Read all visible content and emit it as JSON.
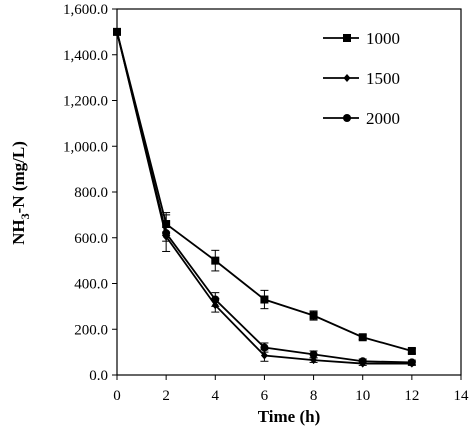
{
  "chart_data": {
    "type": "line",
    "xlabel": "Time (h)",
    "ylabel": {
      "main": "NH",
      "sub": "3",
      "rest": "-N (mg/L)"
    },
    "xlim": [
      0,
      14
    ],
    "ylim": [
      0,
      1600
    ],
    "x_ticks": [
      0,
      2,
      4,
      6,
      8,
      10,
      12,
      14
    ],
    "x_tick_labels": [
      "0",
      "2",
      "4",
      "6",
      "8",
      "10",
      "12",
      "14"
    ],
    "y_ticks": [
      0,
      200,
      400,
      600,
      800,
      1000,
      1200,
      1400,
      1600
    ],
    "y_tick_labels": [
      "0.0",
      "200.0",
      "400.0",
      "600.0",
      "800.0",
      "1,000.0",
      "1,200.0",
      "1,400.0",
      "1,600.0"
    ],
    "grid": false,
    "legend_position": "top-right",
    "x": [
      0,
      2,
      4,
      6,
      8,
      10,
      12
    ],
    "series": [
      {
        "name": "1000",
        "marker": "square",
        "values": [
          1500,
          660,
          500,
          330,
          260,
          165,
          105
        ],
        "errors": [
          0,
          50,
          45,
          40,
          20,
          10,
          10
        ]
      },
      {
        "name": "1500",
        "marker": "diamond",
        "values": [
          1500,
          605,
          305,
          85,
          65,
          50,
          50
        ],
        "errors": [
          0,
          20,
          30,
          25,
          10,
          8,
          8
        ]
      },
      {
        "name": "2000",
        "marker": "circle",
        "values": [
          1500,
          620,
          330,
          120,
          90,
          60,
          55
        ],
        "errors": [
          0,
          80,
          30,
          20,
          15,
          10,
          10
        ]
      }
    ]
  }
}
